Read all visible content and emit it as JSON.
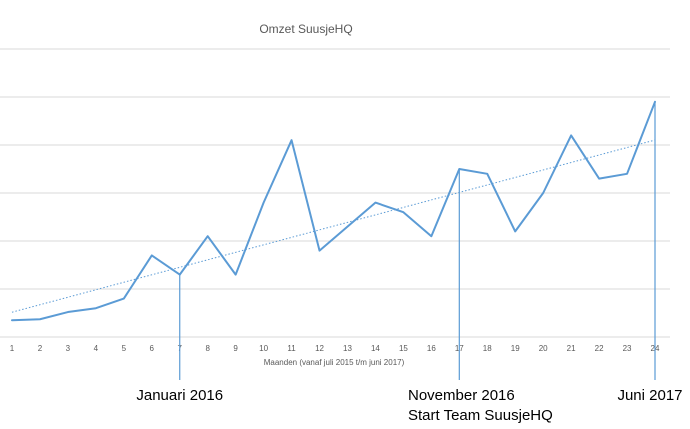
{
  "chart_data": {
    "type": "line",
    "title": "Omzet SuusjeHQ",
    "xlabel": "Maanden (vanaf juli 2015 t/m juni 2017)",
    "ylabel": "",
    "x": [
      1,
      2,
      3,
      4,
      5,
      6,
      7,
      8,
      9,
      10,
      11,
      12,
      13,
      14,
      15,
      16,
      17,
      18,
      19,
      20,
      21,
      22,
      23,
      24
    ],
    "ylim": [
      0,
      6
    ],
    "y_tick_labels_visible": false,
    "grid": "horizontal",
    "series": [
      {
        "values": [
          0.35,
          0.37,
          0.52,
          0.6,
          0.8,
          1.7,
          1.3,
          2.1,
          1.3,
          2.8,
          4.1,
          1.8,
          2.3,
          2.8,
          2.6,
          2.1,
          3.5,
          3.4,
          2.2,
          3.0,
          4.2,
          3.3,
          3.4,
          4.9
        ],
        "color": "#5B9BD5"
      }
    ],
    "trendline": {
      "type": "linear",
      "style": "dotted",
      "color": "#5B9BD5"
    },
    "annotations": [
      {
        "x": 7,
        "lines": [
          "Januari 2016"
        ]
      },
      {
        "x": 17,
        "lines": [
          "November 2016",
          "Start Team SuusjeHQ"
        ]
      },
      {
        "x": 24,
        "lines": [
          "Juni 2017"
        ]
      }
    ]
  }
}
